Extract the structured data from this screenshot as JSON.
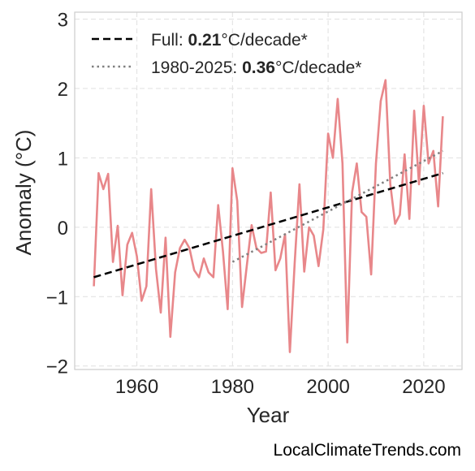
{
  "chart_data": {
    "type": "line",
    "xlabel": "Year",
    "ylabel": "Anomaly (°C)",
    "xlim": [
      1947,
      2028
    ],
    "ylim": [
      -2.05,
      3.1
    ],
    "x_ticks": [
      1960,
      1980,
      2000,
      2020
    ],
    "x_tick_labels": [
      "1960",
      "1980",
      "2000",
      "2020"
    ],
    "y_ticks": [
      -2,
      -1,
      0,
      1,
      2,
      3
    ],
    "y_tick_labels": [
      "−2",
      "−1",
      "0",
      "1",
      "2",
      "3"
    ],
    "grid": true,
    "legend_position": "top-left",
    "series": [
      {
        "color": "#e8878a",
        "x": [
          1951,
          1952,
          1953,
          1954,
          1955,
          1956,
          1957,
          1958,
          1959,
          1960,
          1961,
          1962,
          1963,
          1964,
          1965,
          1966,
          1967,
          1968,
          1969,
          1970,
          1971,
          1972,
          1973,
          1974,
          1975,
          1976,
          1977,
          1978,
          1979,
          1980,
          1981,
          1982,
          1983,
          1984,
          1985,
          1986,
          1987,
          1988,
          1989,
          1990,
          1991,
          1992,
          1993,
          1994,
          1995,
          1996,
          1997,
          1998,
          1999,
          2000,
          2001,
          2002,
          2003,
          2004,
          2005,
          2006,
          2007,
          2008,
          2009,
          2010,
          2011,
          2012,
          2013,
          2014,
          2015,
          2016,
          2017,
          2018,
          2019,
          2020,
          2021,
          2022,
          2023,
          2024
        ],
        "values": [
          -0.85,
          0.78,
          0.55,
          0.77,
          -0.5,
          0.02,
          -0.98,
          -0.25,
          -0.08,
          -0.42,
          -1.06,
          -0.85,
          0.55,
          -0.6,
          -1.23,
          -0.15,
          -1.58,
          -0.65,
          -0.3,
          -0.18,
          -0.3,
          -0.62,
          -0.72,
          -0.45,
          -0.65,
          -0.72,
          0.32,
          -0.35,
          -1.18,
          0.85,
          0.38,
          -1.15,
          -0.55,
          0.03,
          -0.3,
          -0.37,
          -0.35,
          0.5,
          -0.62,
          -0.45,
          -0.1,
          -1.8,
          -0.52,
          0.62,
          -0.64,
          0.0,
          -0.12,
          -0.56,
          -0.03,
          1.35,
          1.0,
          1.85,
          0.92,
          -1.66,
          0.5,
          0.92,
          0.22,
          0.15,
          -0.68,
          0.92,
          1.82,
          2.12,
          0.62,
          0.05,
          0.18,
          1.05,
          0.12,
          1.68,
          0.62,
          1.75,
          0.92,
          1.1,
          0.3,
          1.6
        ]
      }
    ],
    "trends": [
      {
        "label_prefix": "Full: ",
        "rate": "0.21",
        "label_suffix": "°C/decade*",
        "style": "dashed",
        "color": "#000000",
        "x": [
          1951,
          2024
        ],
        "values": [
          -0.72,
          0.78
        ]
      },
      {
        "label_prefix": "1980-2025: ",
        "rate": "0.36",
        "label_suffix": "°C/decade*",
        "style": "dotted",
        "color": "#808080",
        "x": [
          1980,
          2024
        ],
        "values": [
          -0.5,
          1.1
        ]
      }
    ]
  },
  "source_label": "LocalClimateTrends.com"
}
